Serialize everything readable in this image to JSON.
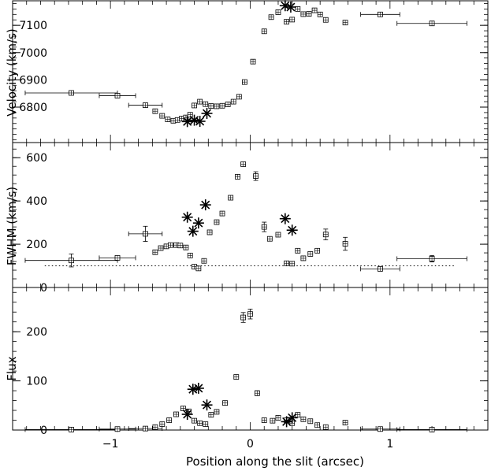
{
  "chart_data": [
    {
      "type": "scatter",
      "panel": "velocity",
      "ylabel": "Velocity (km/s)",
      "ylim": [
        6670,
        7190
      ],
      "yticks": [
        6800,
        6900,
        7000,
        7100
      ],
      "ytick_labels": [
        "6800",
        "6900",
        "7000",
        "7100"
      ],
      "grid": false,
      "series": [
        {
          "marker": "square",
          "points": [
            {
              "x": -1.28,
              "y": 6852,
              "xerr": 0.33
            },
            {
              "x": -0.95,
              "y": 6842,
              "xerr": 0.13
            },
            {
              "x": -0.75,
              "y": 6807,
              "xerr": 0.12
            },
            {
              "x": -0.68,
              "y": 6785
            },
            {
              "x": -0.63,
              "y": 6768
            },
            {
              "x": -0.59,
              "y": 6755
            },
            {
              "x": -0.55,
              "y": 6750
            },
            {
              "x": -0.52,
              "y": 6753
            },
            {
              "x": -0.49,
              "y": 6758
            },
            {
              "x": -0.46,
              "y": 6762
            },
            {
              "x": -0.43,
              "y": 6772
            },
            {
              "x": -0.4,
              "y": 6806
            },
            {
              "x": -0.36,
              "y": 6820
            },
            {
              "x": -0.32,
              "y": 6811
            },
            {
              "x": -0.28,
              "y": 6804
            },
            {
              "x": -0.24,
              "y": 6803
            },
            {
              "x": -0.2,
              "y": 6805
            },
            {
              "x": -0.16,
              "y": 6810
            },
            {
              "x": -0.12,
              "y": 6820
            },
            {
              "x": -0.08,
              "y": 6838
            },
            {
              "x": -0.04,
              "y": 6892
            },
            {
              "x": 0.02,
              "y": 6967
            },
            {
              "x": 0.1,
              "y": 7078
            },
            {
              "x": 0.15,
              "y": 7130
            },
            {
              "x": 0.2,
              "y": 7148
            },
            {
              "x": 0.26,
              "y": 7113
            },
            {
              "x": 0.3,
              "y": 7121
            },
            {
              "x": 0.34,
              "y": 7160
            },
            {
              "x": 0.38,
              "y": 7141
            },
            {
              "x": 0.42,
              "y": 7142
            },
            {
              "x": 0.46,
              "y": 7155
            },
            {
              "x": 0.5,
              "y": 7140
            },
            {
              "x": 0.54,
              "y": 7120
            },
            {
              "x": 0.68,
              "y": 7110
            },
            {
              "x": 0.93,
              "y": 7140,
              "xerr": 0.14
            },
            {
              "x": 1.3,
              "y": 7107,
              "xerr": 0.25
            }
          ]
        },
        {
          "marker": "star",
          "points": [
            {
              "x": -0.45,
              "y": 6747
            },
            {
              "x": -0.4,
              "y": 6752
            },
            {
              "x": -0.36,
              "y": 6748
            },
            {
              "x": -0.31,
              "y": 6777
            },
            {
              "x": 0.25,
              "y": 7172
            },
            {
              "x": 0.29,
              "y": 7167
            }
          ]
        }
      ]
    },
    {
      "type": "scatter",
      "panel": "fwhm",
      "ylabel": "FWHM (km/s)",
      "ylim": [
        0,
        670
      ],
      "yticks": [
        0,
        200,
        400,
        600
      ],
      "ytick_labels": [
        "0",
        "200",
        "400",
        "600"
      ],
      "grid": false,
      "reference_line": {
        "y": 100,
        "style": "dotted",
        "x_range": [
          -1.47,
          1.47
        ]
      },
      "series": [
        {
          "marker": "square",
          "points": [
            {
              "x": -1.28,
              "y": 125,
              "xerr": 0.33,
              "yerr": 30
            },
            {
              "x": -0.95,
              "y": 137,
              "xerr": 0.13
            },
            {
              "x": -0.75,
              "y": 248,
              "xerr": 0.12,
              "yerr": 35
            },
            {
              "x": -0.68,
              "y": 163
            },
            {
              "x": -0.64,
              "y": 182
            },
            {
              "x": -0.6,
              "y": 190
            },
            {
              "x": -0.57,
              "y": 196
            },
            {
              "x": -0.53,
              "y": 196
            },
            {
              "x": -0.5,
              "y": 194
            },
            {
              "x": -0.46,
              "y": 185
            },
            {
              "x": -0.43,
              "y": 148
            },
            {
              "x": -0.4,
              "y": 96
            },
            {
              "x": -0.37,
              "y": 88
            },
            {
              "x": -0.33,
              "y": 123
            },
            {
              "x": -0.29,
              "y": 255
            },
            {
              "x": -0.24,
              "y": 302
            },
            {
              "x": -0.2,
              "y": 342
            },
            {
              "x": -0.14,
              "y": 415
            },
            {
              "x": -0.09,
              "y": 512
            },
            {
              "x": -0.05,
              "y": 570
            },
            {
              "x": 0.04,
              "y": 515,
              "yerr": 20
            },
            {
              "x": 0.1,
              "y": 280,
              "yerr": 22
            },
            {
              "x": 0.14,
              "y": 225
            },
            {
              "x": 0.2,
              "y": 244
            },
            {
              "x": 0.26,
              "y": 112
            },
            {
              "x": 0.3,
              "y": 110
            },
            {
              "x": 0.34,
              "y": 170
            },
            {
              "x": 0.38,
              "y": 135
            },
            {
              "x": 0.43,
              "y": 155
            },
            {
              "x": 0.48,
              "y": 170
            },
            {
              "x": 0.54,
              "y": 245,
              "yerr": 25
            },
            {
              "x": 0.68,
              "y": 202,
              "yerr": 30
            },
            {
              "x": 0.93,
              "y": 86,
              "xerr": 0.14
            },
            {
              "x": 1.3,
              "y": 133,
              "xerr": 0.25,
              "yerr": 15
            }
          ]
        },
        {
          "marker": "star",
          "points": [
            {
              "x": -0.45,
              "y": 325
            },
            {
              "x": -0.41,
              "y": 260
            },
            {
              "x": -0.37,
              "y": 298
            },
            {
              "x": -0.32,
              "y": 382
            },
            {
              "x": 0.25,
              "y": 318
            },
            {
              "x": 0.3,
              "y": 265
            }
          ]
        }
      ]
    },
    {
      "type": "scatter",
      "panel": "flux",
      "xlabel": "Position along the slit (arcsec)",
      "ylabel": "Flux",
      "xlim": [
        -1.7,
        1.7
      ],
      "ylim": [
        0,
        290
      ],
      "xticks": [
        -1,
        0,
        1
      ],
      "xtick_labels": [
        "−1",
        "0",
        "1"
      ],
      "yticks": [
        0,
        100,
        200
      ],
      "ytick_labels": [
        "0",
        "100",
        "200"
      ],
      "grid": false,
      "series": [
        {
          "marker": "square",
          "points": [
            {
              "x": -1.28,
              "y": 1,
              "xerr": 0.33
            },
            {
              "x": -0.95,
              "y": 2,
              "xerr": 0.13
            },
            {
              "x": -0.75,
              "y": 3,
              "xerr": 0.12
            },
            {
              "x": -0.68,
              "y": 6
            },
            {
              "x": -0.63,
              "y": 12
            },
            {
              "x": -0.58,
              "y": 20
            },
            {
              "x": -0.53,
              "y": 32
            },
            {
              "x": -0.48,
              "y": 44
            },
            {
              "x": -0.44,
              "y": 38
            },
            {
              "x": -0.4,
              "y": 19
            },
            {
              "x": -0.36,
              "y": 14
            },
            {
              "x": -0.32,
              "y": 12
            },
            {
              "x": -0.28,
              "y": 31
            },
            {
              "x": -0.24,
              "y": 37
            },
            {
              "x": -0.18,
              "y": 55
            },
            {
              "x": -0.1,
              "y": 108
            },
            {
              "x": -0.05,
              "y": 229,
              "yerr": 10
            },
            {
              "x": 0.0,
              "y": 236,
              "yerr": 10
            },
            {
              "x": 0.05,
              "y": 75,
              "yerr": 5
            },
            {
              "x": 0.1,
              "y": 20
            },
            {
              "x": 0.16,
              "y": 19
            },
            {
              "x": 0.2,
              "y": 25
            },
            {
              "x": 0.26,
              "y": 20
            },
            {
              "x": 0.3,
              "y": 14
            },
            {
              "x": 0.34,
              "y": 31
            },
            {
              "x": 0.38,
              "y": 22
            },
            {
              "x": 0.43,
              "y": 18
            },
            {
              "x": 0.48,
              "y": 10
            },
            {
              "x": 0.54,
              "y": 6
            },
            {
              "x": 0.68,
              "y": 15
            },
            {
              "x": 0.93,
              "y": 2,
              "xerr": 0.14
            },
            {
              "x": 1.3,
              "y": 1,
              "xerr": 0.25
            }
          ]
        },
        {
          "marker": "star",
          "points": [
            {
              "x": -0.45,
              "y": 32
            },
            {
              "x": -0.41,
              "y": 83
            },
            {
              "x": -0.37,
              "y": 85
            },
            {
              "x": -0.31,
              "y": 51
            },
            {
              "x": 0.26,
              "y": 17
            },
            {
              "x": 0.3,
              "y": 25
            }
          ]
        }
      ]
    }
  ]
}
